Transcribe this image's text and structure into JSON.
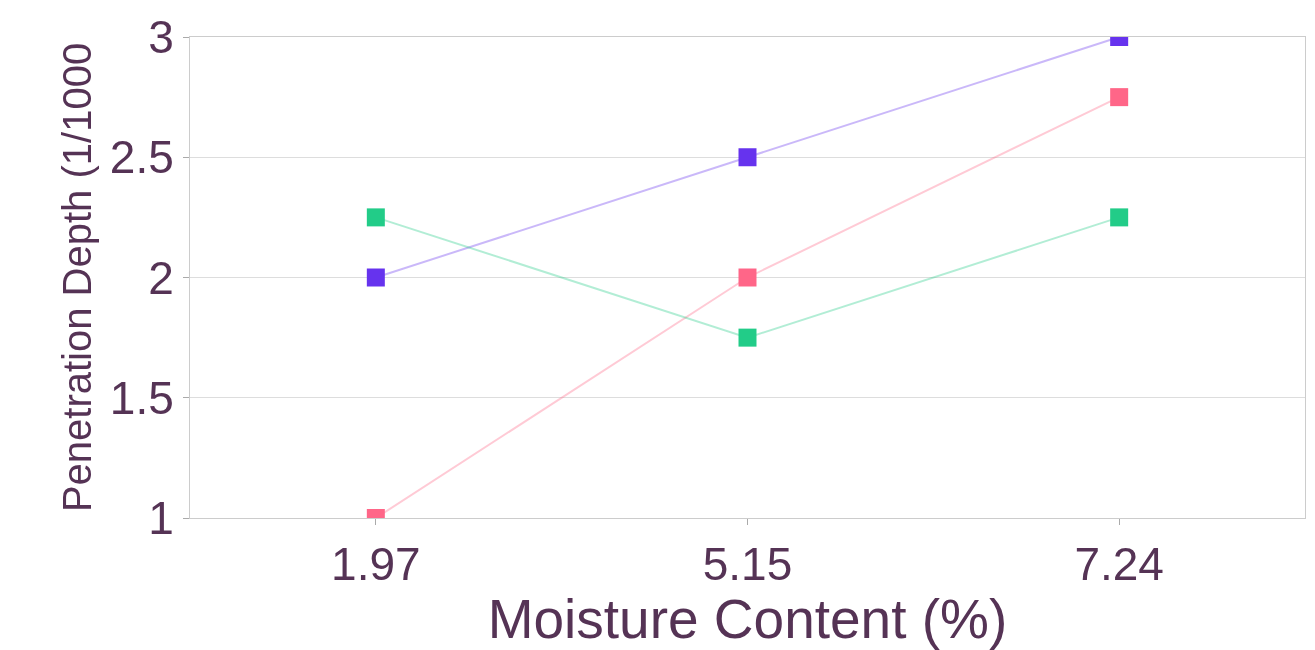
{
  "chart_data": {
    "type": "line",
    "xlabel": "Moisture Content (%)",
    "ylabel": "Penetration Depth (1/1000",
    "categories": [
      "1.97",
      "5.15",
      "7.24"
    ],
    "series": [
      {
        "color": "#6633ee",
        "values": [
          2,
          2.5,
          3
        ]
      },
      {
        "color": "#ff6688",
        "values": [
          1,
          2,
          2.75
        ]
      },
      {
        "color": "#22cc88",
        "values": [
          2.25,
          1.75,
          2.25
        ]
      }
    ],
    "ylim": [
      1,
      3
    ],
    "yticks": [
      1,
      1.5,
      2,
      2.5,
      3
    ],
    "grid": "y",
    "marker": "square"
  }
}
